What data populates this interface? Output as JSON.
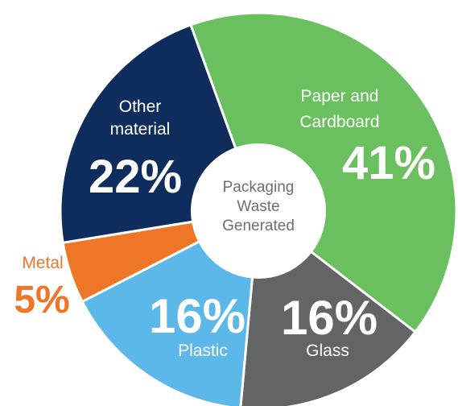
{
  "chart_data": {
    "type": "pie",
    "donut": true,
    "center_label": [
      "Packaging",
      "Waste",
      "Generated"
    ],
    "slices": [
      {
        "name": "Paper and Cardboard",
        "name_lines": [
          "Paper and",
          "Cardboard"
        ],
        "value": 41,
        "label": "41%",
        "color": "#6abf5e",
        "text_color": "#ffffff"
      },
      {
        "name": "Glass",
        "name_lines": [
          "Glass"
        ],
        "value": 16,
        "label": "16%",
        "color": "#636466",
        "text_color": "#ffffff"
      },
      {
        "name": "Plastic",
        "name_lines": [
          "Plastic"
        ],
        "value": 16,
        "label": "16%",
        "color": "#5bb8e8",
        "text_color": "#ffffff"
      },
      {
        "name": "Metal",
        "name_lines": [
          "Metal"
        ],
        "value": 5,
        "label": "5%",
        "color": "#ef7626",
        "text_color": "#ef7626"
      },
      {
        "name": "Other material",
        "name_lines": [
          "Other",
          "material"
        ],
        "value": 22,
        "label": "22%",
        "color": "#0e2d5c",
        "text_color": "#ffffff"
      }
    ]
  }
}
